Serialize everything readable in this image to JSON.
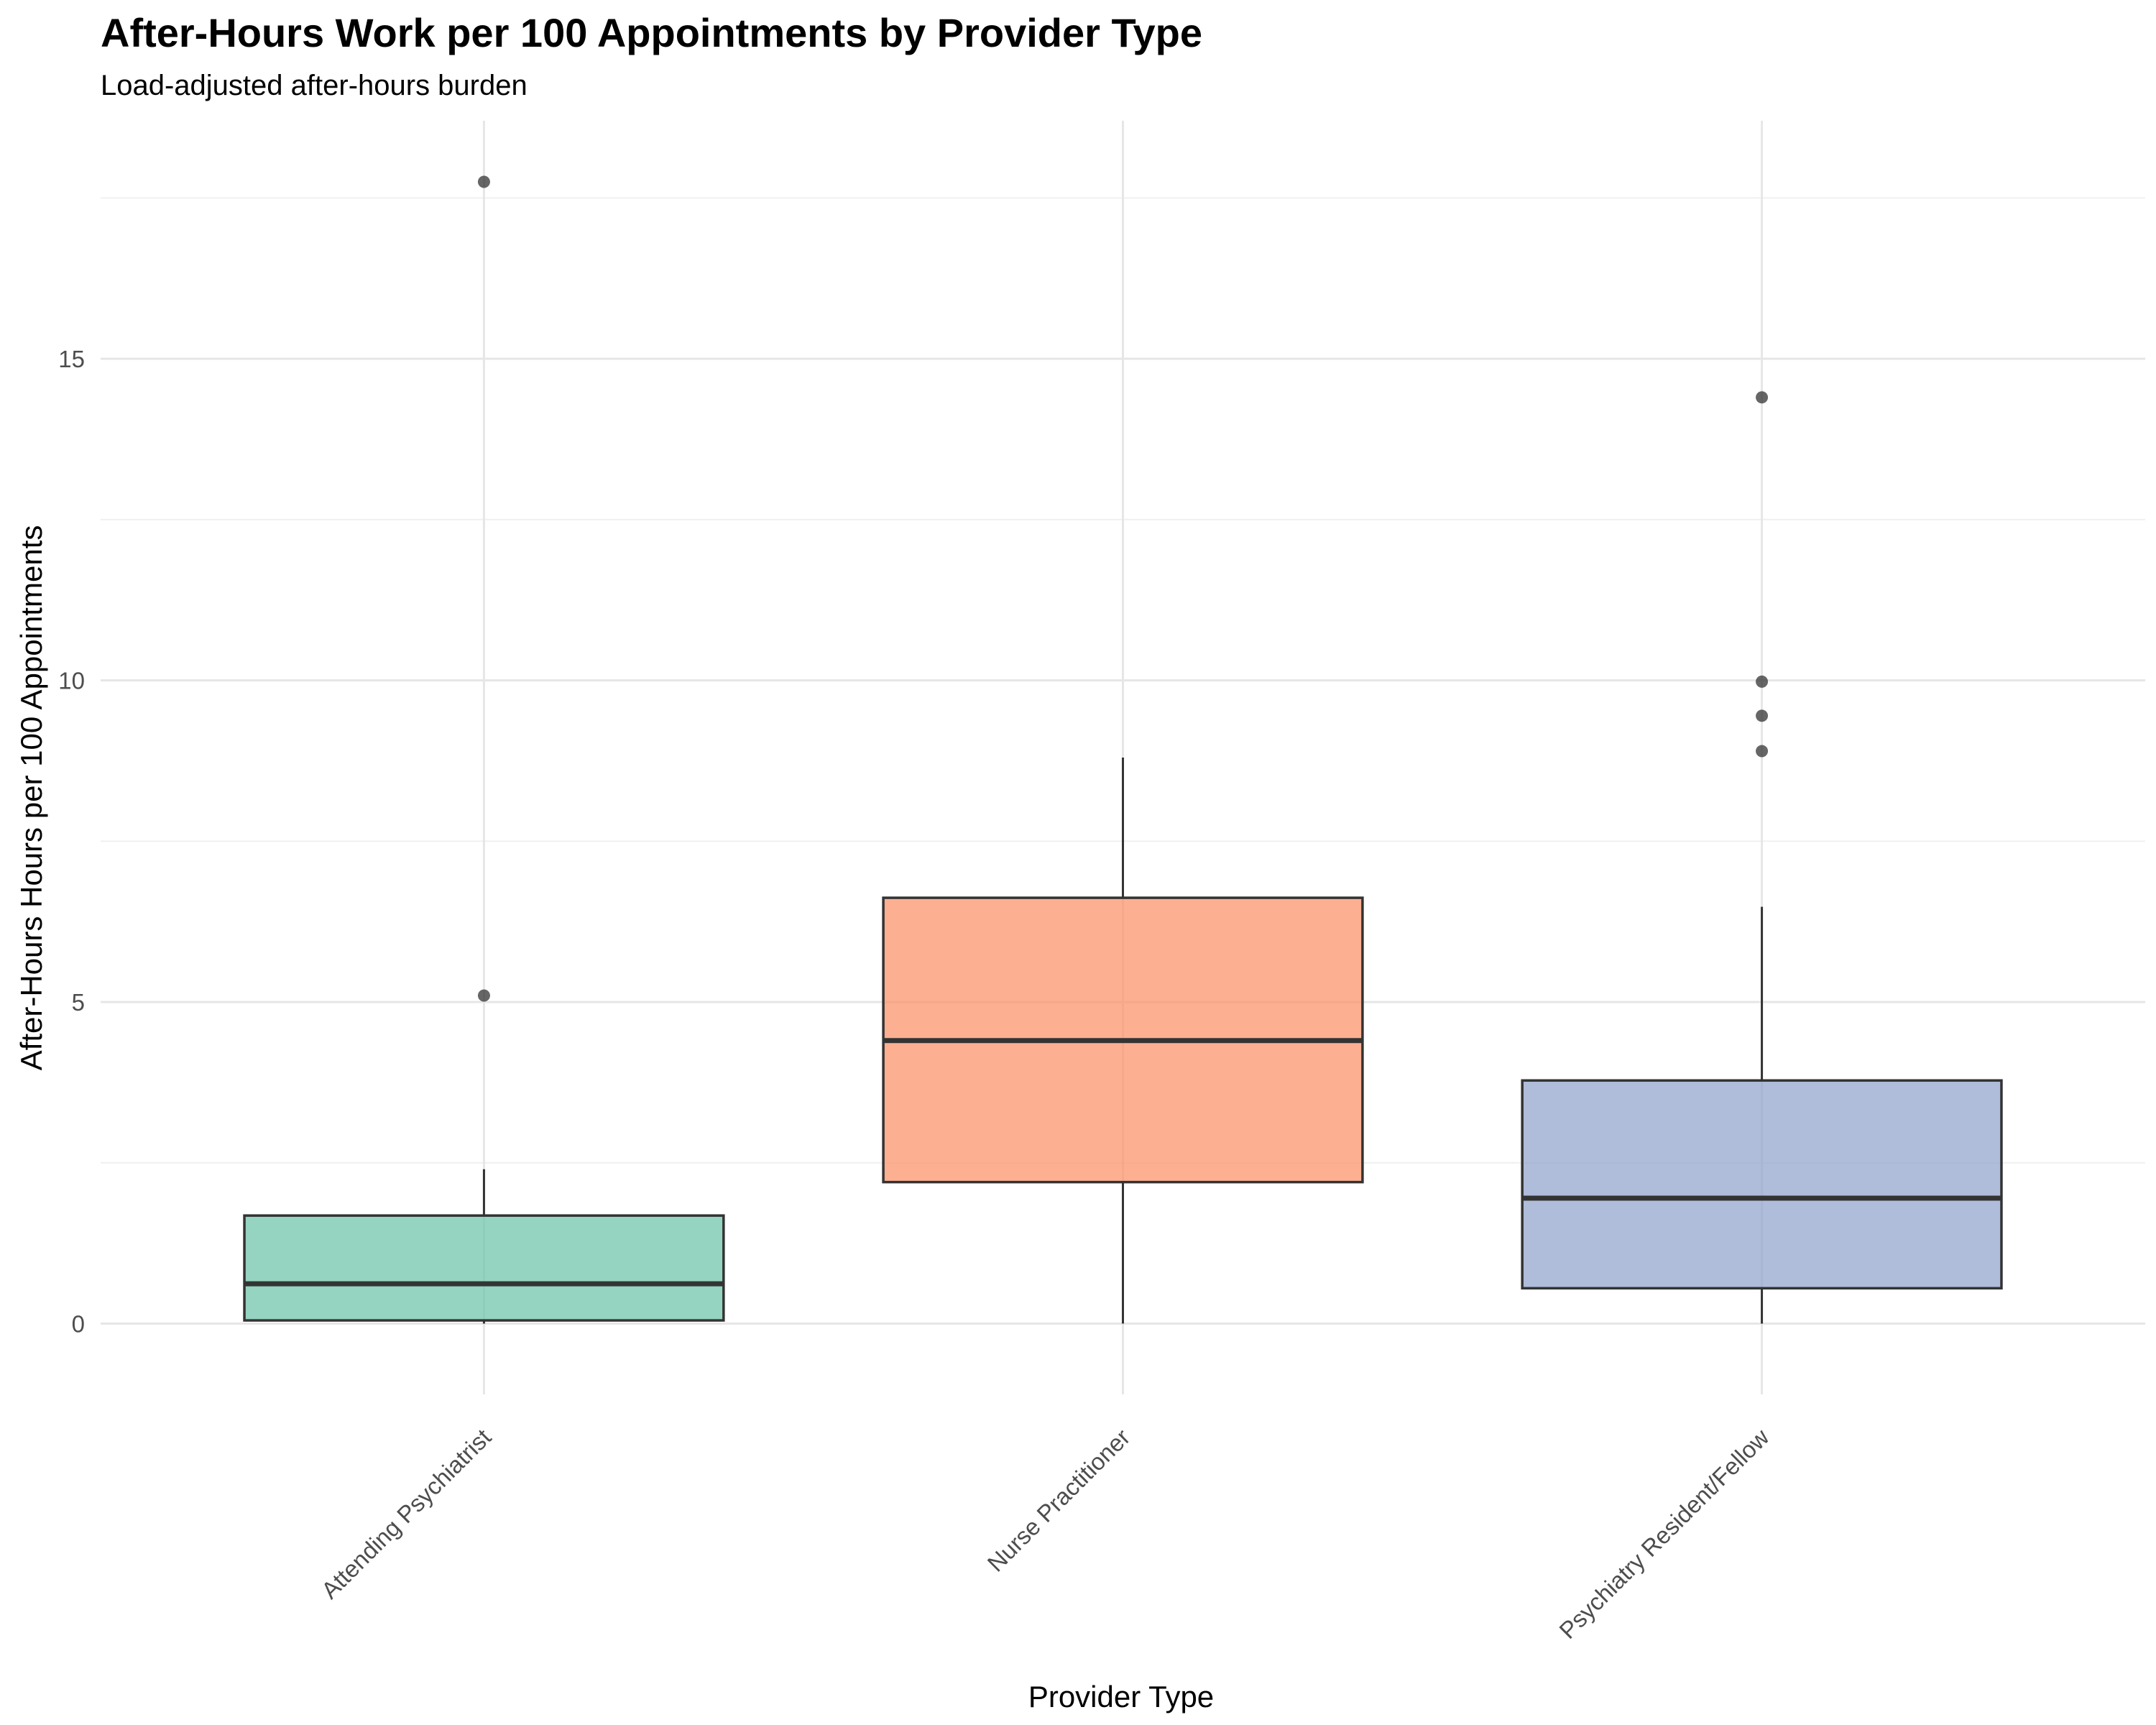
{
  "chart_data": {
    "type": "boxplot",
    "title": "After-Hours Work per 100 Appointments by Provider Type",
    "subtitle": "Load-adjusted after-hours burden",
    "xlabel": "Provider Type",
    "ylabel": "After-Hours Hours per 100 Appointments",
    "ylim": [
      -1.1,
      18.7
    ],
    "yticks": [
      0,
      5,
      10,
      15
    ],
    "yticks_minor": [
      2.5,
      7.5,
      12.5,
      17.5
    ],
    "grid": true,
    "legend": "none",
    "categories": [
      "Attending Psychiatrist",
      "Nurse Practitioner",
      "Psychiatry Resident/Fellow"
    ],
    "boxes": [
      {
        "category": "Attending Psychiatrist",
        "whisker_low": 0.0,
        "q1": 0.05,
        "median": 0.62,
        "q3": 1.68,
        "whisker_high": 2.4,
        "outliers": [
          5.1,
          17.75
        ],
        "color": "#66c2a5"
      },
      {
        "category": "Nurse Practitioner",
        "whisker_low": 0.0,
        "q1": 2.2,
        "median": 4.4,
        "q3": 6.62,
        "whisker_high": 8.8,
        "outliers": [],
        "color": "#fc8d62"
      },
      {
        "category": "Psychiatry Resident/Fellow",
        "whisker_low": 0.0,
        "q1": 0.55,
        "median": 1.95,
        "q3": 3.78,
        "whisker_high": 6.48,
        "outliers": [
          8.9,
          9.45,
          9.98,
          14.4
        ],
        "color": "#8da0cb"
      }
    ]
  }
}
